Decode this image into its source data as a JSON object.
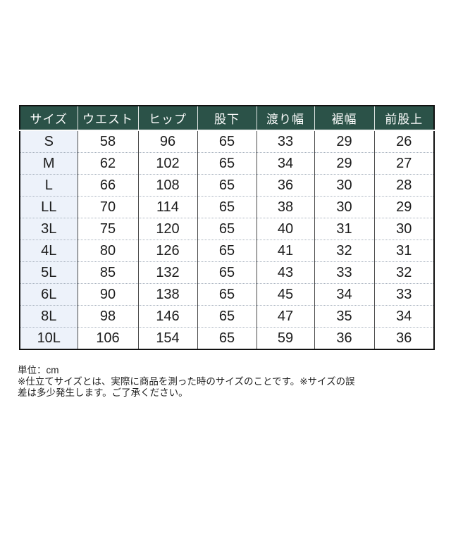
{
  "table": {
    "columns": [
      "サイズ",
      "ウエスト",
      "ヒップ",
      "股下",
      "渡り幅",
      "裾幅",
      "前股上"
    ],
    "rows": [
      {
        "size": "S",
        "values": [
          "58",
          "96",
          "65",
          "33",
          "29",
          "26"
        ]
      },
      {
        "size": "M",
        "values": [
          "62",
          "102",
          "65",
          "34",
          "29",
          "27"
        ]
      },
      {
        "size": "L",
        "values": [
          "66",
          "108",
          "65",
          "36",
          "30",
          "28"
        ]
      },
      {
        "size": "LL",
        "values": [
          "70",
          "114",
          "65",
          "38",
          "30",
          "29"
        ]
      },
      {
        "size": "3L",
        "values": [
          "75",
          "120",
          "65",
          "40",
          "31",
          "30"
        ]
      },
      {
        "size": "4L",
        "values": [
          "80",
          "126",
          "65",
          "41",
          "32",
          "31"
        ]
      },
      {
        "size": "5L",
        "values": [
          "85",
          "132",
          "65",
          "43",
          "33",
          "32"
        ]
      },
      {
        "size": "6L",
        "values": [
          "90",
          "138",
          "65",
          "45",
          "34",
          "33"
        ]
      },
      {
        "size": "8L",
        "values": [
          "98",
          "146",
          "65",
          "47",
          "35",
          "34"
        ]
      },
      {
        "size": "10L",
        "values": [
          "106",
          "154",
          "65",
          "59",
          "36",
          "36"
        ]
      }
    ],
    "colors": {
      "header_bg": "#2b5248",
      "header_text": "#ffffff",
      "size_column_bg": "#edf2fa",
      "body_bg": "#ffffff",
      "outer_border": "#111111",
      "column_divider": "#4a4a4a",
      "row_divider": "#a9b3bf",
      "text": "#1c1c1c"
    }
  },
  "footer": {
    "unit_label": "単位：cm",
    "note_line1": "※仕立てサイズとは、実際に商品を測った時のサイズのことです。※サイズの誤",
    "note_line2": "差は多少発生します。ご了承ください。"
  }
}
